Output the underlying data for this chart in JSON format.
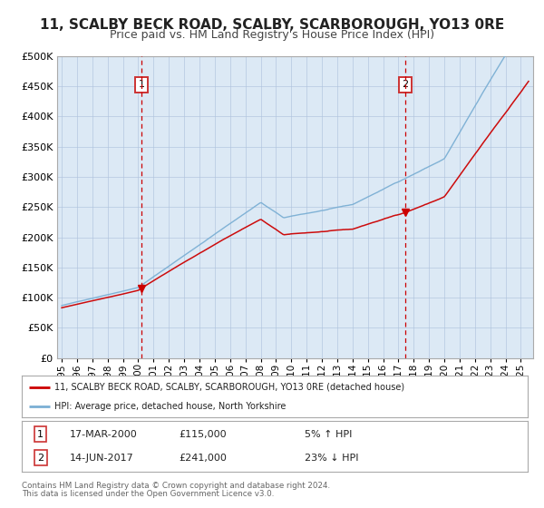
{
  "title": "11, SCALBY BECK ROAD, SCALBY, SCARBOROUGH, YO13 0RE",
  "subtitle": "Price paid vs. HM Land Registry's House Price Index (HPI)",
  "title_fontsize": 11,
  "subtitle_fontsize": 9,
  "bg_color": "#dce9f5",
  "fig_bg_color": "#ffffff",
  "red_line_color": "#cc0000",
  "blue_line_color": "#7bafd4",
  "sale1_date": 2000.21,
  "sale1_price": 115000,
  "sale2_date": 2017.45,
  "sale2_price": 241000,
  "vline_color": "#cc0000",
  "marker_color": "#cc0000",
  "xmin": 1995,
  "xmax": 2025,
  "ymin": 0,
  "ymax": 500000,
  "yticks": [
    0,
    50000,
    100000,
    150000,
    200000,
    250000,
    300000,
    350000,
    400000,
    450000,
    500000
  ],
  "legend_label1": "11, SCALBY BECK ROAD, SCALBY, SCARBOROUGH, YO13 0RE (detached house)",
  "legend_label2": "HPI: Average price, detached house, North Yorkshire",
  "table_row1": [
    "1",
    "17-MAR-2000",
    "£115,000",
    "5% ↑ HPI"
  ],
  "table_row2": [
    "2",
    "14-JUN-2017",
    "£241,000",
    "23% ↓ HPI"
  ],
  "footnote1": "Contains HM Land Registry data © Crown copyright and database right 2024.",
  "footnote2": "This data is licensed under the Open Government Licence v3.0.",
  "grid_color": "#b0c4de"
}
